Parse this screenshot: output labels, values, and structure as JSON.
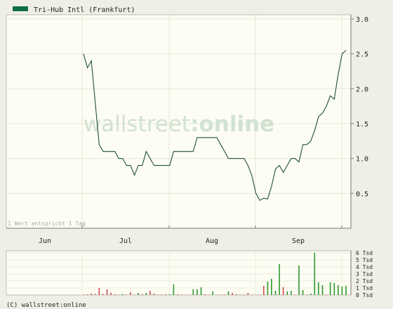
{
  "chart_data": [
    {
      "type": "line",
      "legend": "Tri-Hub Intl (Frankfurt)",
      "legend_placement": "top-left",
      "note": "1 Wert entspricht 1 Tag",
      "watermark": "wallstreet:online",
      "watermark_parts": [
        "wallstreet",
        ":online"
      ],
      "x_ticks": [
        "Jun",
        "Jul",
        "Aug",
        "Sep"
      ],
      "y_ticks": [
        "0.5",
        "1.0",
        "1.5",
        "2.0",
        "2.5",
        "3.0"
      ],
      "ylim": [
        0.0,
        3.0
      ],
      "grid": true,
      "colors": {
        "line": "#1f4f3b",
        "legend_swatch": "#0e6e48",
        "plot_bg": "#fdfdf3",
        "grid": "#e6e6d8"
      },
      "series": [
        {
          "name": "Tri-Hub Intl (Frankfurt)",
          "values": [
            2.5,
            2.3,
            2.4,
            1.8,
            1.2,
            1.1,
            1.1,
            1.1,
            1.1,
            1.0,
            1.0,
            0.9,
            0.9,
            0.76,
            0.9,
            0.9,
            1.1,
            1.0,
            0.9,
            0.9,
            0.9,
            0.9,
            0.9,
            1.1,
            1.1,
            1.1,
            1.1,
            1.1,
            1.1,
            1.3,
            1.3,
            1.3,
            1.3,
            1.3,
            1.3,
            1.2,
            1.1,
            1.0,
            1.0,
            1.0,
            1.0,
            1.0,
            0.9,
            0.75,
            0.5,
            0.4,
            0.43,
            0.42,
            0.6,
            0.85,
            0.9,
            0.8,
            0.9,
            1.0,
            1.0,
            0.95,
            1.2,
            1.2,
            1.25,
            1.4,
            1.6,
            1.65,
            1.75,
            1.9,
            1.85,
            2.2,
            2.5,
            2.55
          ]
        }
      ]
    },
    {
      "type": "bar",
      "y_ticks": [
        "0 Tsd",
        "1 Tsd",
        "2 Tsd",
        "3 Tsd",
        "4 Tsd",
        "5 Tsd",
        "6 Tsd"
      ],
      "ylim": [
        0,
        6
      ],
      "colors": {
        "up": "#2e9a2e",
        "down": "#cc4a4a"
      },
      "series": [
        {
          "name": "",
          "values": [
            0.05,
            0.1,
            0.2,
            0.15,
            1.0,
            0.15,
            0.8,
            0.3,
            0.1,
            0.05,
            0.15,
            0.05,
            0.4,
            0.05,
            0.3,
            0.1,
            0.3,
            0.6,
            0.2,
            0.05,
            0.05,
            0.1,
            0.1,
            1.5,
            0.1,
            0.05,
            0.05,
            0.05,
            0.8,
            0.8,
            1.1,
            0.1,
            0.05,
            0.5,
            0.05,
            0.05,
            0.05,
            0.5,
            0.3,
            0.1,
            0.05,
            0.05,
            0.3,
            0.05,
            0.05,
            0.05,
            1.3,
            1.9,
            2.3,
            0.6,
            4.4,
            1.1,
            0.5,
            0.6,
            0.05,
            4.2,
            0.7,
            0.05,
            0.2,
            6.0,
            1.8,
            1.4,
            0.05,
            1.8,
            1.7,
            1.4,
            1.2,
            1.3
          ],
          "direction": [
            "d",
            "d",
            "d",
            "d",
            "d",
            "d",
            "d",
            "d",
            "d",
            "d",
            "u",
            "d",
            "d",
            "d",
            "u",
            "d",
            "u",
            "d",
            "d",
            "d",
            "d",
            "d",
            "u",
            "u",
            "d",
            "d",
            "d",
            "d",
            "u",
            "u",
            "u",
            "d",
            "d",
            "u",
            "d",
            "d",
            "d",
            "u",
            "d",
            "d",
            "d",
            "d",
            "d",
            "d",
            "d",
            "d",
            "d",
            "u",
            "u",
            "u",
            "u",
            "d",
            "u",
            "u",
            "d",
            "u",
            "u",
            "d",
            "u",
            "u",
            "u",
            "u",
            "d",
            "u",
            "u",
            "u",
            "u",
            "u"
          ]
        }
      ]
    }
  ],
  "footer": {
    "copyright": "(C) wallstreet:online"
  }
}
